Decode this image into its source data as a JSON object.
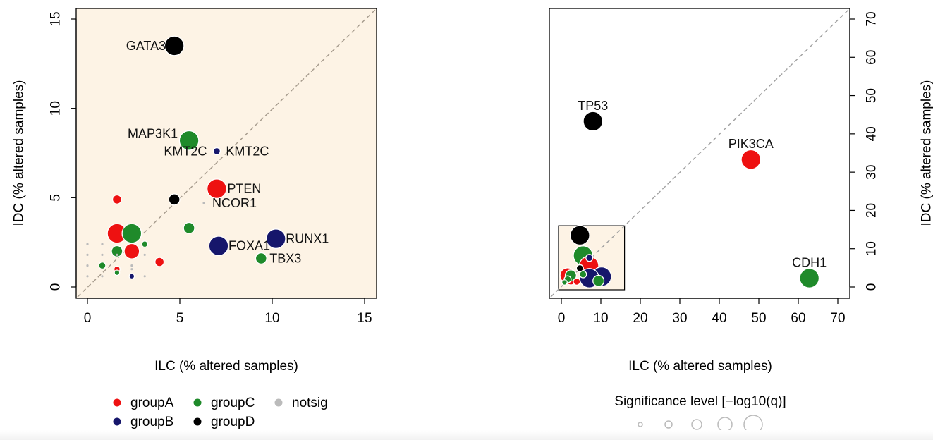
{
  "chart_data": [
    {
      "type": "scatter",
      "xlabel": "ILC (% altered samples)",
      "ylabel": "IDC (% altered samples)",
      "xlim": [
        0,
        15
      ],
      "ylim": [
        0,
        15
      ],
      "xticks": [
        "0",
        "5",
        "10",
        "15"
      ],
      "yticks": [
        "0",
        "5",
        "10",
        "15"
      ],
      "background": "#fdf3e5",
      "diagonal": true,
      "points": [
        {
          "x": 4.7,
          "y": 13.5,
          "group": "groupD",
          "sig": 4,
          "label": "GATA3"
        },
        {
          "x": 5.5,
          "y": 8.2,
          "group": "groupC",
          "sig": 4,
          "label": "MAP3K1"
        },
        {
          "x": 7.0,
          "y": 7.6,
          "group": "groupB",
          "sig": 1,
          "label": "KMT2C"
        },
        {
          "x": 7.0,
          "y": 7.6,
          "group": "groupB",
          "sig": 1,
          "label": "KMT2C"
        },
        {
          "x": 7.0,
          "y": 5.5,
          "group": "groupA",
          "sig": 4,
          "label": "PTEN"
        },
        {
          "x": 6.3,
          "y": 4.7,
          "group": "notsig",
          "sig": 0.5,
          "label": "NCOR1"
        },
        {
          "x": 10.2,
          "y": 2.7,
          "group": "groupB",
          "sig": 4,
          "label": "RUNX1"
        },
        {
          "x": 7.1,
          "y": 2.3,
          "group": "groupB",
          "sig": 4,
          "label": "FOXA1"
        },
        {
          "x": 9.4,
          "y": 1.6,
          "group": "groupC",
          "sig": 2,
          "label": "TBX3"
        },
        {
          "x": 4.7,
          "y": 4.9,
          "group": "groupD",
          "sig": 2
        },
        {
          "x": 1.6,
          "y": 4.9,
          "group": "groupA",
          "sig": 1.5
        },
        {
          "x": 1.6,
          "y": 3.0,
          "group": "groupA",
          "sig": 4
        },
        {
          "x": 2.4,
          "y": 3.0,
          "group": "groupC",
          "sig": 4
        },
        {
          "x": 5.5,
          "y": 3.3,
          "group": "groupC",
          "sig": 2
        },
        {
          "x": 2.4,
          "y": 2.0,
          "group": "groupA",
          "sig": 3
        },
        {
          "x": 1.6,
          "y": 2.0,
          "group": "groupC",
          "sig": 2
        },
        {
          "x": 3.9,
          "y": 1.4,
          "group": "groupA",
          "sig": 1.5
        },
        {
          "x": 3.1,
          "y": 2.4,
          "group": "groupC",
          "sig": 0.8
        },
        {
          "x": 0.8,
          "y": 1.2,
          "group": "groupC",
          "sig": 1
        },
        {
          "x": 1.6,
          "y": 1.0,
          "group": "groupA",
          "sig": 0.8
        },
        {
          "x": 1.6,
          "y": 0.8,
          "group": "groupC",
          "sig": 0.6
        },
        {
          "x": 2.4,
          "y": 0.6,
          "group": "groupB",
          "sig": 0.6
        },
        {
          "x": 0.0,
          "y": 2.4,
          "group": "notsig",
          "sig": 0.5
        },
        {
          "x": 0.0,
          "y": 1.8,
          "group": "notsig",
          "sig": 0.5
        },
        {
          "x": 0.0,
          "y": 1.2,
          "group": "notsig",
          "sig": 0.5
        },
        {
          "x": 0.0,
          "y": 0.6,
          "group": "notsig",
          "sig": 0.5
        },
        {
          "x": 0.8,
          "y": 2.4,
          "group": "notsig",
          "sig": 0.5
        },
        {
          "x": 0.8,
          "y": 1.8,
          "group": "notsig",
          "sig": 0.5
        },
        {
          "x": 0.8,
          "y": 0.6,
          "group": "notsig",
          "sig": 0.5
        },
        {
          "x": 1.6,
          "y": 1.8,
          "group": "notsig",
          "sig": 0.5
        },
        {
          "x": 2.4,
          "y": 1.2,
          "group": "notsig",
          "sig": 0.5
        },
        {
          "x": 2.4,
          "y": 1.0,
          "group": "notsig",
          "sig": 0.5
        },
        {
          "x": 3.1,
          "y": 1.8,
          "group": "notsig",
          "sig": 0.5
        },
        {
          "x": 3.1,
          "y": 0.6,
          "group": "notsig",
          "sig": 0.5
        }
      ]
    },
    {
      "type": "scatter",
      "xlabel": "ILC (% altered samples)",
      "ylabel": "IDC (% altered samples)",
      "xlim": [
        0,
        70
      ],
      "ylim": [
        0,
        70
      ],
      "xticks": [
        "0",
        "10",
        "20",
        "30",
        "40",
        "50",
        "60",
        "70"
      ],
      "yticks": [
        "0",
        "10",
        "20",
        "30",
        "40",
        "50",
        "60",
        "70"
      ],
      "background": "#ffffff",
      "diagonal": true,
      "inset_box": {
        "x": [
          0,
          16
        ],
        "y": [
          0,
          16
        ],
        "fill": "#fdf3e5"
      },
      "points": [
        {
          "x": 8.0,
          "y": 43.3,
          "group": "groupD",
          "sig": 4,
          "label": "TP53"
        },
        {
          "x": 48.0,
          "y": 33.3,
          "group": "groupA",
          "sig": 4,
          "label": "PIK3CA"
        },
        {
          "x": 62.8,
          "y": 2.3,
          "group": "groupC",
          "sig": 4,
          "label": "CDH1"
        },
        {
          "x": 4.7,
          "y": 13.5,
          "group": "groupD",
          "sig": 4
        },
        {
          "x": 5.5,
          "y": 8.2,
          "group": "groupC",
          "sig": 4
        },
        {
          "x": 7.0,
          "y": 5.5,
          "group": "groupA",
          "sig": 4
        },
        {
          "x": 7.1,
          "y": 7.6,
          "group": "groupB",
          "sig": 1
        },
        {
          "x": 10.2,
          "y": 2.7,
          "group": "groupB",
          "sig": 4
        },
        {
          "x": 7.1,
          "y": 2.3,
          "group": "groupB",
          "sig": 4
        },
        {
          "x": 9.4,
          "y": 1.6,
          "group": "groupC",
          "sig": 2
        },
        {
          "x": 1.6,
          "y": 3.0,
          "group": "groupA",
          "sig": 3
        },
        {
          "x": 2.4,
          "y": 2.0,
          "group": "groupA",
          "sig": 2
        },
        {
          "x": 2.4,
          "y": 3.0,
          "group": "groupC",
          "sig": 2
        },
        {
          "x": 1.6,
          "y": 2.0,
          "group": "groupC",
          "sig": 1
        },
        {
          "x": 4.7,
          "y": 4.9,
          "group": "groupD",
          "sig": 1
        },
        {
          "x": 5.5,
          "y": 3.3,
          "group": "groupC",
          "sig": 1
        },
        {
          "x": 3.9,
          "y": 1.4,
          "group": "groupA",
          "sig": 1
        },
        {
          "x": 0.8,
          "y": 1.2,
          "group": "groupC",
          "sig": 0.6
        }
      ]
    }
  ],
  "legend": {
    "groups": [
      {
        "name": "groupA",
        "color": "#ee1111"
      },
      {
        "name": "groupC",
        "color": "#1f8a2a"
      },
      {
        "name": "notsig",
        "color": "#bbbbbb"
      },
      {
        "name": "groupB",
        "color": "#16166b"
      },
      {
        "name": "groupD",
        "color": "#000000"
      }
    ]
  },
  "size_legend": {
    "title": "Significance level [−log10(q)]",
    "levels": [
      1,
      2,
      3,
      4,
      5
    ]
  },
  "colors": {
    "groupA": "#ee1111",
    "groupB": "#16166b",
    "groupC": "#1f8a2a",
    "groupD": "#000000",
    "notsig": "#bbbbbb"
  }
}
